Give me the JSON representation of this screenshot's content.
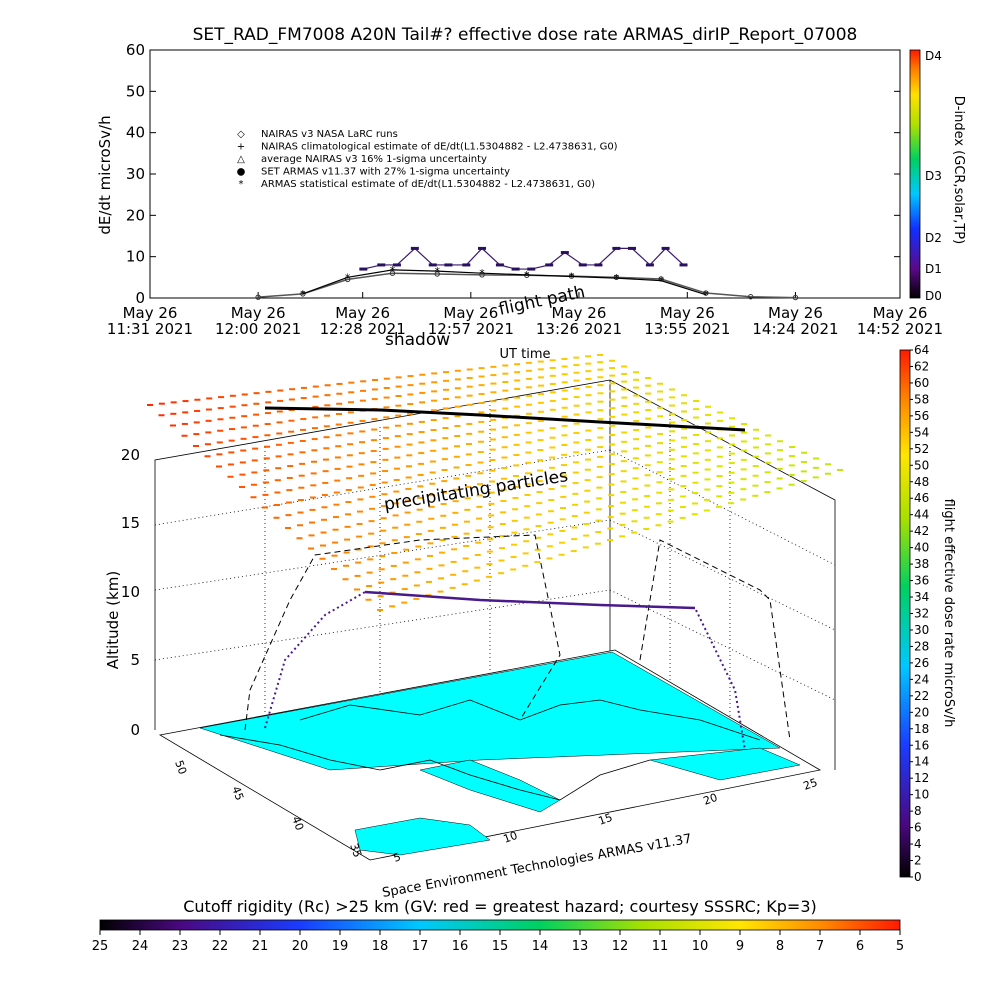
{
  "chart_data": [
    {
      "type": "scatter",
      "title": "SET_RAD_FM7008  A20N Tail#? effective dose rate ARMAS_dirIP_Report_07008",
      "ylabel": "dE/dt microSv/h",
      "xlabel": "UT time",
      "ylim": [
        0,
        60
      ],
      "y_ticks": [
        "0",
        "10",
        "20",
        "30",
        "40",
        "50",
        "60"
      ],
      "x_ticks": [
        [
          "May 26",
          "11:31 2021"
        ],
        [
          "May 26",
          "12:00 2021"
        ],
        [
          "May 26",
          "12:28 2021"
        ],
        [
          "May 26",
          "12:57 2021"
        ],
        [
          "May 26",
          "13:26 2021"
        ],
        [
          "May 26",
          "13:55 2021"
        ],
        [
          "May 26",
          "14:24 2021"
        ],
        [
          "May 26",
          "14:52 2021"
        ]
      ],
      "x_hours": [
        11.517,
        12.0,
        12.467,
        12.95,
        13.433,
        13.917,
        14.4,
        14.867
      ],
      "legend": [
        "NAIRAS v3 NASA LaRC runs",
        "NAIRAS climatological estimate of dE/dt(L1.5304882 - L2.4738631, G0)",
        "average NAIRAS v3 16% 1-sigma uncertainty",
        "SET ARMAS v11.37 with 27% 1-sigma uncertainty",
        "ARMAS statistical estimate of dE/dt(L1.5304882 - L2.4738631, G0)"
      ],
      "legend_placement": "upper-left",
      "colorbar": {
        "label": "D-index (GCR,solar,TP)",
        "ticks": [
          "D4",
          "D3",
          "D2",
          "D1",
          "D0"
        ]
      },
      "series": [
        {
          "name": "SET ARMAS v11.37 with 27% 1-sigma uncertainty",
          "x": [
            12.47,
            12.55,
            12.62,
            12.7,
            12.78,
            12.85,
            12.93,
            13.0,
            13.08,
            13.15,
            13.22,
            13.3,
            13.37,
            13.45,
            13.52,
            13.6,
            13.67,
            13.75,
            13.82,
            13.9
          ],
          "y": [
            7,
            8,
            8,
            12,
            8,
            8,
            8,
            12,
            8,
            7,
            7,
            8,
            11,
            8,
            8,
            12,
            12,
            8,
            12,
            8
          ]
        },
        {
          "name": "NAIRAS v3 NASA LaRC runs",
          "x": [
            12.0,
            12.2,
            12.4,
            12.6,
            12.8,
            13.0,
            13.2,
            13.4,
            13.6,
            13.8,
            14.0,
            14.2,
            14.4
          ],
          "y": [
            0.2,
            1.0,
            4.5,
            6.0,
            5.8,
            5.6,
            5.5,
            5.3,
            5.0,
            4.6,
            1.2,
            0.3,
            0.1
          ]
        },
        {
          "name": "ARMAS statistical estimate of dE/dt(L1.5304882 - L2.4738631, G0)",
          "x": [
            12.2,
            12.4,
            12.6,
            12.8,
            13.0,
            13.2,
            13.4,
            13.6,
            13.8,
            14.0
          ],
          "y": [
            1.0,
            5.0,
            6.8,
            6.5,
            6.0,
            5.6,
            5.2,
            4.8,
            4.2,
            0.8
          ]
        }
      ]
    },
    {
      "type": "surface3d",
      "zlabel": "Altitude (km)",
      "z_ticks": [
        "0",
        "5",
        "10",
        "15",
        "20"
      ],
      "zlim": [
        0,
        22
      ],
      "lat_ticks": [
        "50",
        "45",
        "40",
        "35"
      ],
      "lon_ticks": [
        "5",
        "10",
        "15",
        "20",
        "25"
      ],
      "annotations": [
        "precipitating particles",
        "shadow",
        "flight path"
      ],
      "credit": "Space Environment Technologies ARMAS v11.37",
      "flight_track_altitude_km": [
        10.5,
        10.5,
        10.2,
        10.0,
        9.8,
        9.6,
        9.5
      ],
      "right_colorbar": {
        "label": "flight effective dose rate microSv/h",
        "min": 0,
        "max": 64,
        "step": 2
      }
    }
  ],
  "bottom_colorbar": {
    "title": "Cutoff rigidity (Rc) >25 km (GV: red = greatest hazard; courtesy SSSRC; Kp=3)",
    "ticks": [
      "25",
      "24",
      "23",
      "22",
      "21",
      "20",
      "19",
      "18",
      "17",
      "16",
      "15",
      "14",
      "13",
      "12",
      "11",
      "10",
      "9",
      "8",
      "7",
      "6",
      "5"
    ]
  }
}
